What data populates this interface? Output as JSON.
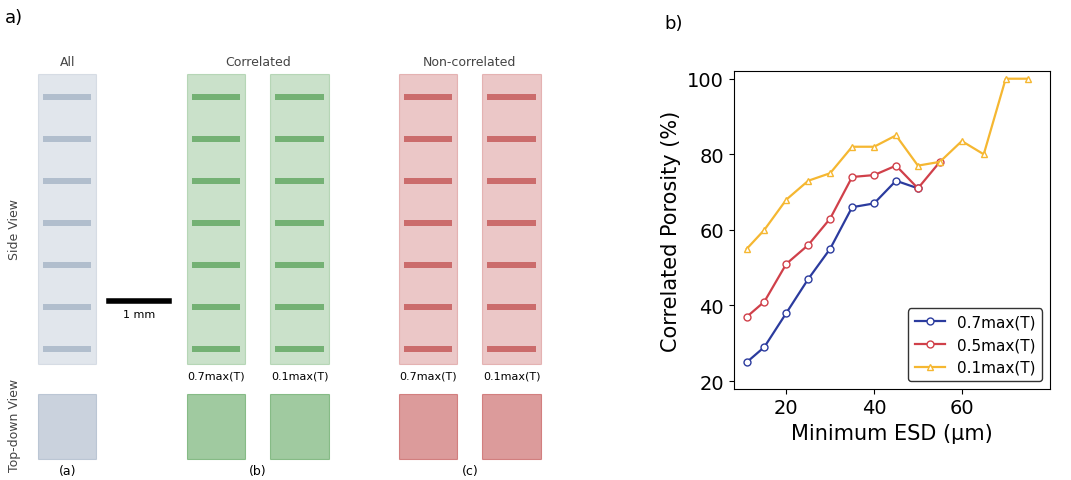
{
  "panel_a": {
    "label": "a)",
    "row_labels": [
      "Side View",
      "Top-down View"
    ],
    "scale_bar": "1 mm",
    "groups": [
      {
        "title": "All",
        "tag": "(a)",
        "color": "#8a9db5",
        "thresholds": []
      },
      {
        "title": "Correlated",
        "tag": "(b)",
        "color": "#2e8b2e",
        "thresholds": [
          "0.7max(T)",
          "0.1max(T)"
        ]
      },
      {
        "title": "Non-correlated",
        "tag": "(c)",
        "color": "#b22222",
        "thresholds": [
          "0.7max(T)",
          "0.1max(T)"
        ]
      }
    ]
  },
  "chart_data": {
    "type": "line",
    "label": "b)",
    "x_label": "Minimum ESD (μm)",
    "y_label": "Correlated Porosity (%)",
    "x": [
      11,
      15,
      20,
      25,
      30,
      35,
      40,
      45,
      50,
      55,
      60,
      65,
      70,
      75
    ],
    "series": [
      {
        "name": "0.7max(T)",
        "color": "#2b3b9e",
        "marker": "circle",
        "values": [
          25,
          29,
          38,
          47,
          55,
          66,
          67,
          73,
          71,
          null,
          null,
          null,
          null,
          null
        ]
      },
      {
        "name": "0.5max(T)",
        "color": "#d0404a",
        "marker": "circle",
        "values": [
          37,
          41,
          51,
          56,
          63,
          74,
          74.5,
          77,
          71,
          78,
          null,
          null,
          null,
          null
        ]
      },
      {
        "name": "0.1max(T)",
        "color": "#f5b731",
        "marker": "triangle",
        "values": [
          55,
          60,
          68,
          73,
          75,
          82,
          82,
          85,
          77,
          78,
          83.5,
          80,
          100,
          100
        ]
      }
    ],
    "xlim": [
      8,
      80
    ],
    "ylim": [
      18,
      102
    ],
    "xticks": [
      20,
      40,
      60
    ],
    "yticks": [
      20,
      40,
      60,
      80,
      100
    ],
    "grid": false,
    "legend": "lower right"
  }
}
